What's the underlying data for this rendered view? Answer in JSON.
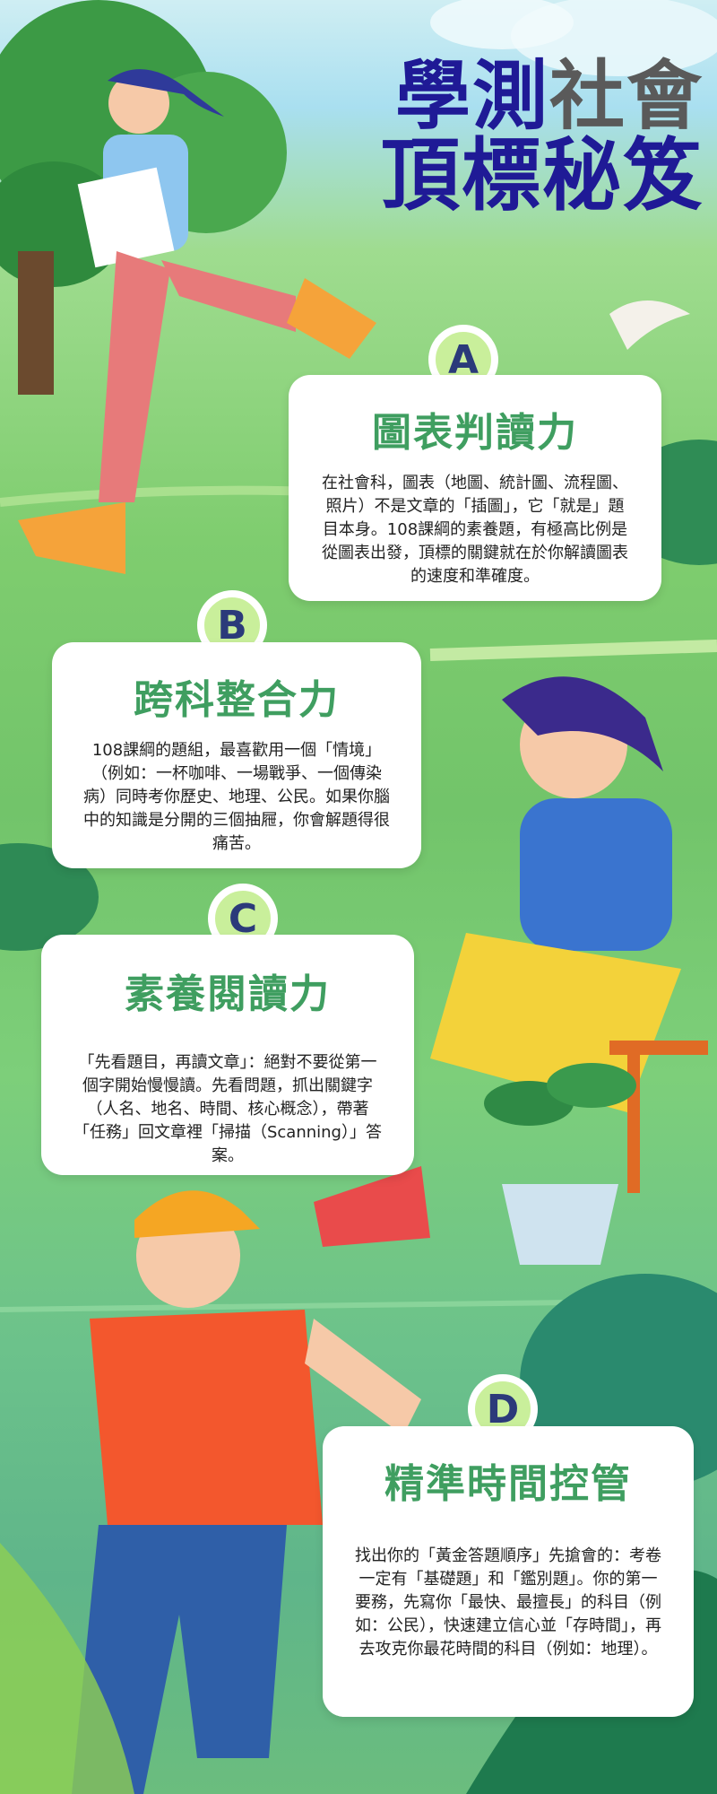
{
  "title": {
    "line1_a": "學測",
    "line1_b": "社會",
    "line2": "頂標秘笈"
  },
  "sections": [
    {
      "letter": "A",
      "heading": "圖表判讀力",
      "body": "在社會科，圖表（地圖、統計圖、流程圖、照片）不是文章的「插圖」，它「就是」題目本身。108課綱的素養題，有極高比例是從圖表出發，頂標的關鍵就在於你解讀圖表的速度和準確度。"
    },
    {
      "letter": "B",
      "heading": "跨科整合力",
      "body": "108課綱的題組，最喜歡用一個「情境」（例如：一杯咖啡、一場戰爭、一個傳染病）同時考你歷史、地理、公民。如果你腦中的知識是分開的三個抽屜，你會解題得很痛苦。"
    },
    {
      "letter": "C",
      "heading": "素養閱讀力",
      "body": "「先看題目，再讀文章」：絕對不要從第一個字開始慢慢讀。先看問題，抓出關鍵字（人名、地名、時間、核心概念），帶著「任務」回文章裡「掃描（Scanning）」答案。"
    },
    {
      "letter": "D",
      "heading": "精準時間控管",
      "body": "找出你的「黃金答題順序」先搶會的：考卷一定有「基礎題」和「鑑別題」。你的第一要務，先寫你「最快、最擅長」的科目（例如：公民），快速建立信心並「存時間」，再去攻克你最花時間的科目（例如：地理）。"
    }
  ],
  "colors": {
    "title_navy": "#1f1a96",
    "title_grey": "#5a5a5a",
    "heading_green": "#3f9e60",
    "badge_fill": "#c9ef9b",
    "badge_letter": "#2b3a7a"
  }
}
